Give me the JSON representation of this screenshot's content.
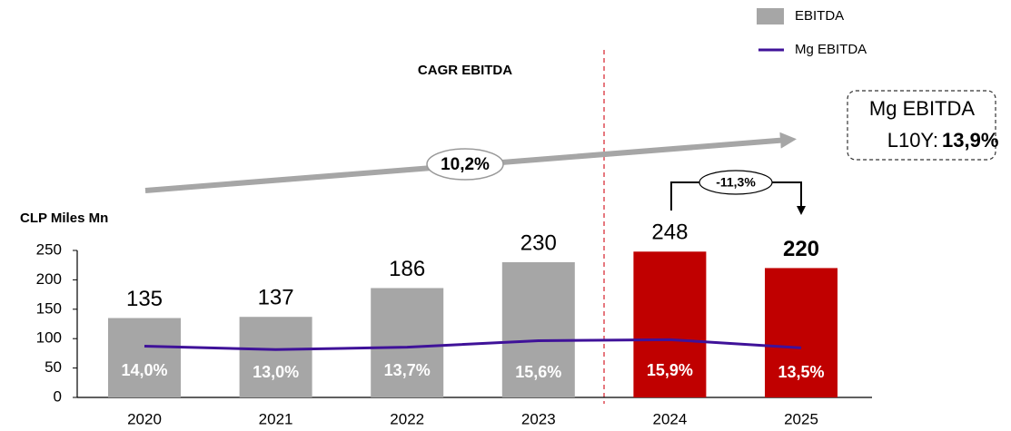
{
  "chart_data": {
    "type": "bar",
    "unit_label": "CLP Miles Mn",
    "categories": [
      "2020",
      "2021",
      "2022",
      "2023",
      "2024",
      "2025"
    ],
    "series": [
      {
        "name": "EBITDA",
        "color": "#a6a6a6",
        "colors": [
          "#a6a6a6",
          "#a6a6a6",
          "#a6a6a6",
          "#a6a6a6",
          "#c00000",
          "#c00000"
        ],
        "values": [
          135,
          137,
          186,
          230,
          248,
          220
        ]
      },
      {
        "name": "Mg EBITDA",
        "color": "#3f1299",
        "axis": "y2",
        "type": "line",
        "values": [
          14.0,
          13.0,
          13.7,
          15.6,
          15.9,
          13.5
        ],
        "value_labels": [
          "14,0%",
          "13,0%",
          "13,7%",
          "15,6%",
          "15,9%",
          "13,5%"
        ]
      }
    ],
    "ylim": [
      0,
      250
    ],
    "yticks": [
      0,
      50,
      100,
      150,
      200,
      250
    ],
    "y2lim": [
      -1,
      42
    ],
    "annotations": {
      "cagr_title": "CAGR EBITDA",
      "cagr_value": "10,2%",
      "change": "-11,3%",
      "box_title": "Mg EBITDA",
      "box_prefix": "L10Y:",
      "box_value": "13,9%"
    },
    "legend": "top-right"
  }
}
